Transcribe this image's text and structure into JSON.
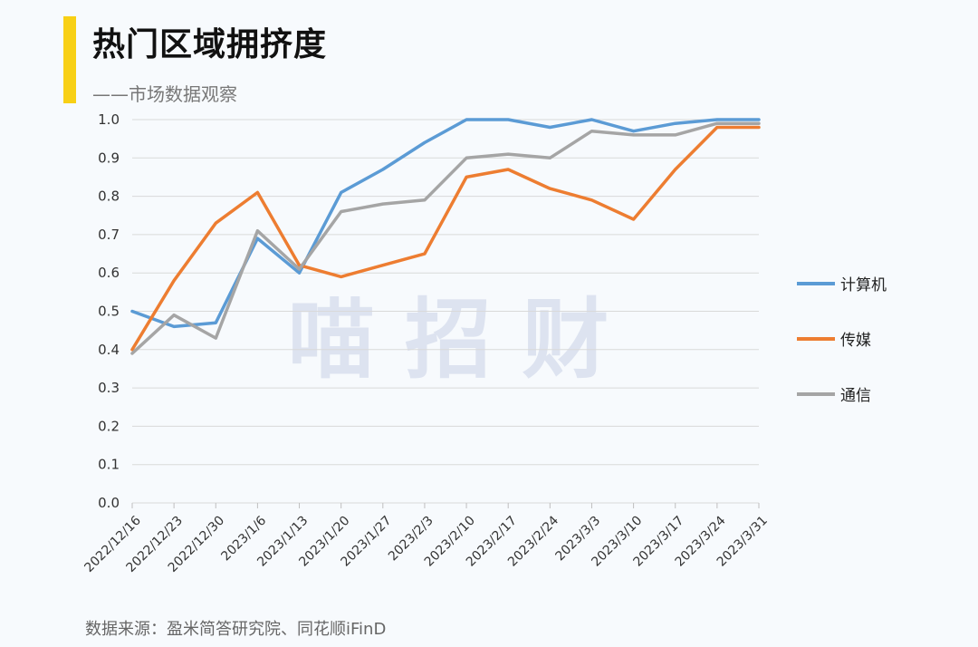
{
  "header": {
    "title": "热门区域拥挤度",
    "subtitle": "——市场数据观察"
  },
  "watermark": "喵 招 财",
  "source": "数据来源：盈米简答研究院、同花顺iFinD",
  "colors": {
    "accent": "#f8d015",
    "grid": "#d9d9d9",
    "watermark": "#dde3f0"
  },
  "chart_data": {
    "type": "line",
    "title": "热门区域拥挤度",
    "x": [
      "2022/12/16",
      "2022/12/23",
      "2022/12/30",
      "2023/1/6",
      "2023/1/13",
      "2023/1/20",
      "2023/1/27",
      "2023/2/3",
      "2023/2/10",
      "2023/2/17",
      "2023/2/24",
      "2023/3/3",
      "2023/3/10",
      "2023/3/17",
      "2023/3/24",
      "2023/3/31"
    ],
    "ylim": [
      0,
      1.0
    ],
    "yticks": [
      "0.0",
      "0.1",
      "0.2",
      "0.3",
      "0.4",
      "0.5",
      "0.6",
      "0.7",
      "0.8",
      "0.9",
      "1.0"
    ],
    "grid": true,
    "legend": "right",
    "series": [
      {
        "name": "计算机",
        "color": "#5b9bd5",
        "values": [
          0.5,
          0.46,
          0.47,
          0.69,
          0.6,
          0.81,
          0.87,
          0.94,
          1.0,
          1.0,
          0.98,
          1.0,
          0.97,
          0.99,
          1.0,
          1.0
        ]
      },
      {
        "name": "传媒",
        "color": "#ed7d31",
        "values": [
          0.4,
          0.58,
          0.73,
          0.81,
          0.62,
          0.59,
          0.62,
          0.65,
          0.85,
          0.87,
          0.82,
          0.79,
          0.74,
          0.87,
          0.98,
          0.98
        ]
      },
      {
        "name": "通信",
        "color": "#a5a5a5",
        "values": [
          0.39,
          0.49,
          0.43,
          0.71,
          0.61,
          0.76,
          0.78,
          0.79,
          0.9,
          0.91,
          0.9,
          0.97,
          0.96,
          0.96,
          0.99,
          0.99
        ]
      }
    ]
  }
}
